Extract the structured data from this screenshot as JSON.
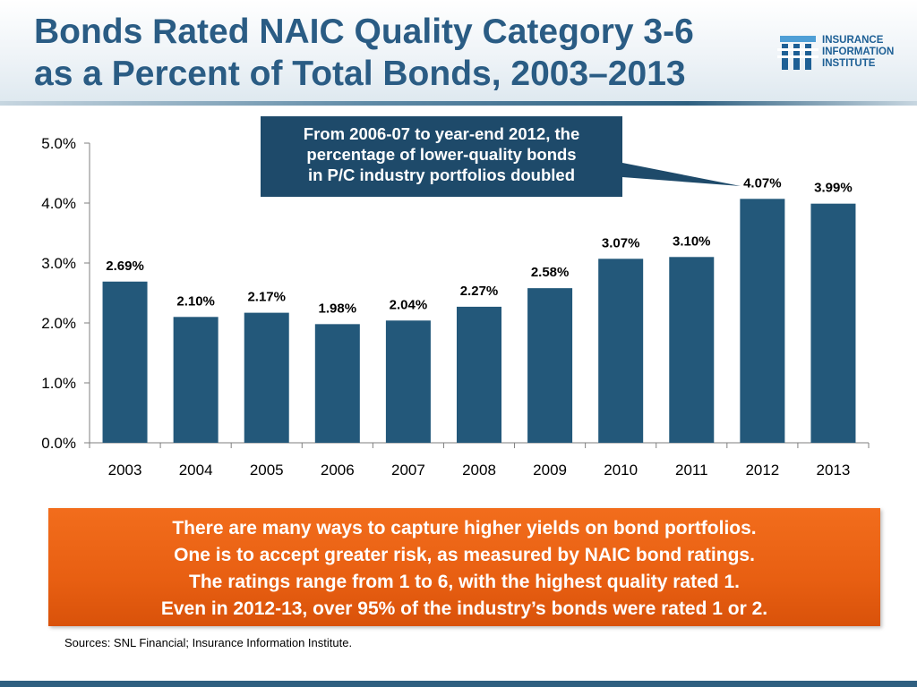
{
  "title_lines": [
    "Bonds Rated NAIC Quality Category 3-6",
    "as a Percent of Total Bonds, 2003–2013"
  ],
  "logo": {
    "lines": [
      "INSURANCE",
      "INFORMATION",
      "INSTITUTE"
    ]
  },
  "callout": {
    "lines": [
      "From 2006-07 to year-end 2012, the",
      "percentage of lower-quality bonds",
      "in P/C industry portfolios doubled"
    ]
  },
  "chart_data": {
    "type": "bar",
    "categories": [
      "2003",
      "2004",
      "2005",
      "2006",
      "2007",
      "2008",
      "2009",
      "2010",
      "2011",
      "2012",
      "2013"
    ],
    "values": [
      2.69,
      2.1,
      2.17,
      1.98,
      2.04,
      2.27,
      2.58,
      3.07,
      3.1,
      4.07,
      3.99
    ],
    "data_labels": [
      "2.69%",
      "2.10%",
      "2.17%",
      "1.98%",
      "2.04%",
      "2.27%",
      "2.58%",
      "3.07%",
      "3.10%",
      "4.07%",
      "3.99%"
    ],
    "ylim": [
      0,
      5
    ],
    "yticks": [
      0,
      1,
      2,
      3,
      4,
      5
    ],
    "ytick_labels": [
      "0.0%",
      "1.0%",
      "2.0%",
      "3.0%",
      "4.0%",
      "5.0%"
    ],
    "bar_color": "#23587a",
    "grid": false,
    "legend": "none",
    "xlabel": "",
    "ylabel": ""
  },
  "footer_lines": [
    "There are many ways to capture higher yields on bond portfolios.",
    "One is to accept greater risk, as measured by NAIC bond ratings.",
    "The ratings range from 1 to 6, with the highest quality rated 1.",
    "Even in 2012-13, over 95% of the industry’s bonds were rated 1 or 2."
  ],
  "sources": "Sources: SNL Financial; Insurance Information Institute.",
  "colors": {
    "title": "#2a5c84",
    "callout_bg": "#1e4a6a",
    "footer_bg": "#ea6412",
    "bottom_bar": "#2f5f80"
  }
}
